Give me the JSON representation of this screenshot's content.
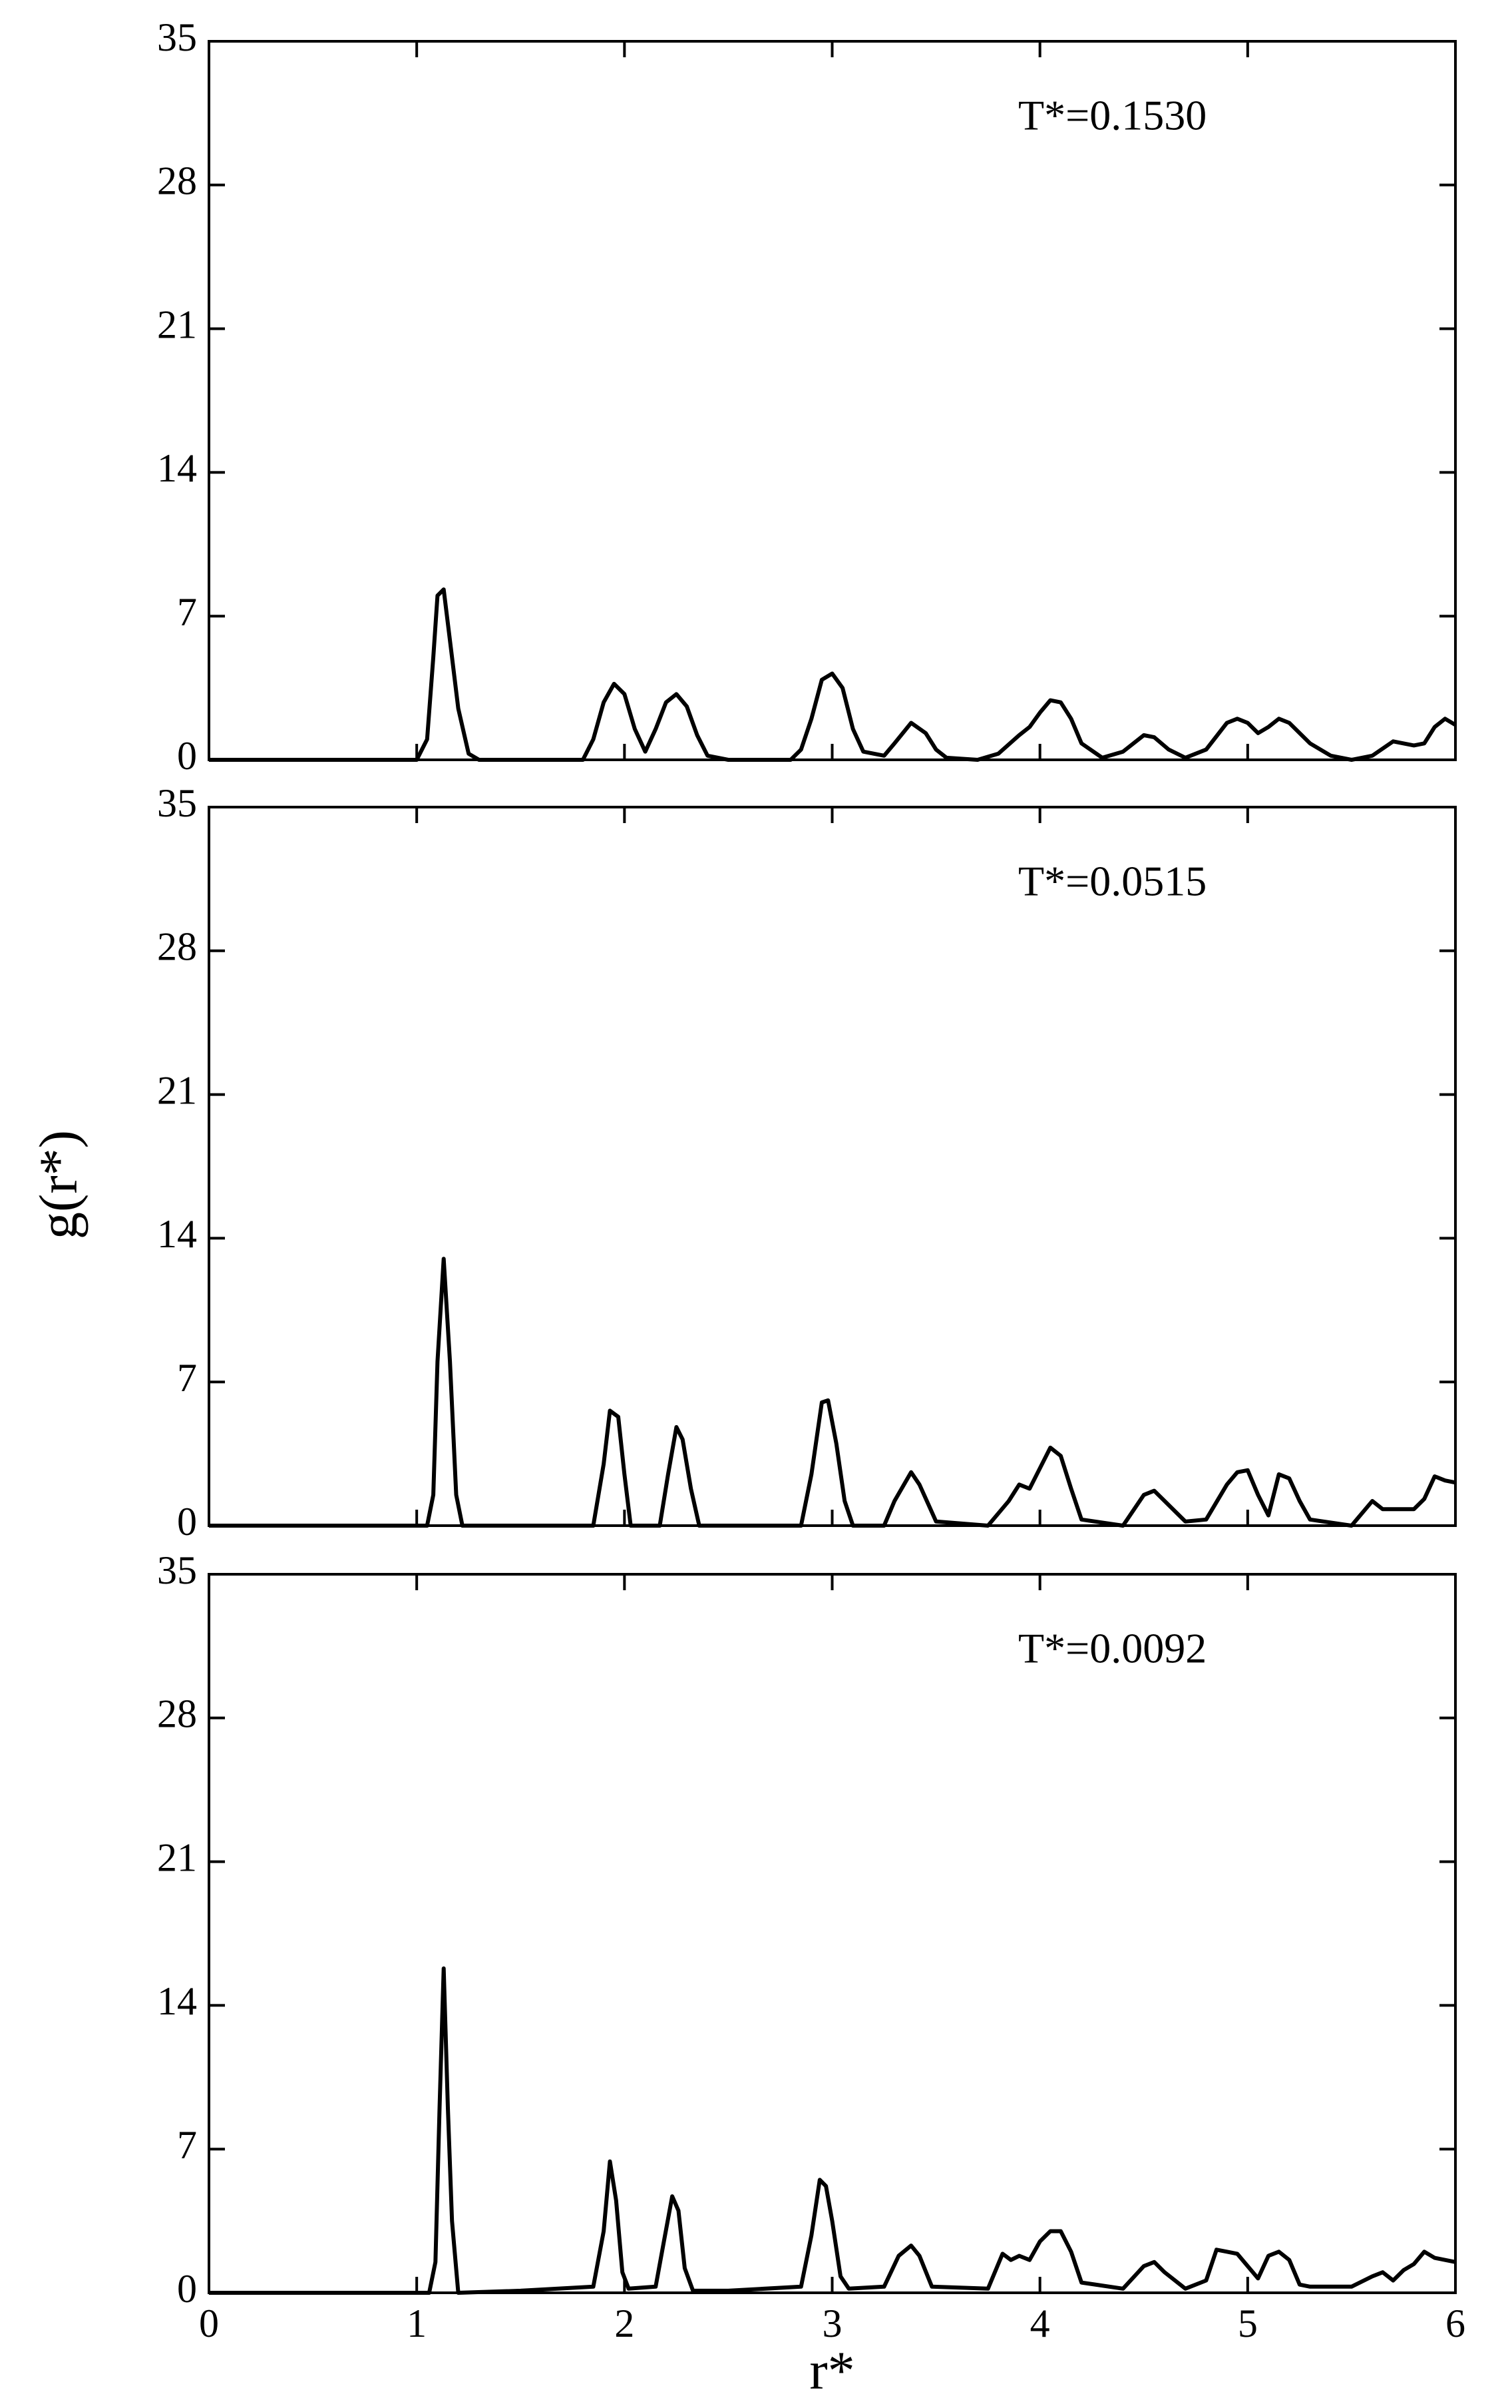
{
  "chart_data": [
    {
      "type": "line",
      "annotation": "T*=0.1530",
      "color": "#000000",
      "xlim": [
        0,
        6
      ],
      "xticks": [
        0,
        1,
        2,
        3,
        4,
        5,
        6
      ],
      "xtick_labels": false,
      "ylim": [
        0,
        35
      ],
      "yticks": [
        0,
        7,
        14,
        21,
        28,
        35
      ],
      "x": [
        0,
        1.0,
        1.05,
        1.08,
        1.1,
        1.13,
        1.17,
        1.2,
        1.25,
        1.3,
        1.8,
        1.85,
        1.9,
        1.95,
        2.0,
        2.05,
        2.1,
        2.15,
        2.2,
        2.25,
        2.3,
        2.35,
        2.4,
        2.5,
        2.8,
        2.85,
        2.9,
        2.95,
        3.0,
        3.05,
        3.1,
        3.15,
        3.25,
        3.3,
        3.38,
        3.45,
        3.5,
        3.55,
        3.7,
        3.8,
        3.9,
        3.95,
        4.0,
        4.05,
        4.1,
        4.15,
        4.2,
        4.3,
        4.4,
        4.5,
        4.55,
        4.62,
        4.7,
        4.8,
        4.9,
        4.95,
        5.0,
        5.05,
        5.1,
        5.15,
        5.2,
        5.3,
        5.4,
        5.5,
        5.6,
        5.7,
        5.8,
        5.85,
        5.9,
        5.95,
        6.0
      ],
      "values": [
        0,
        0,
        1,
        5,
        8.0,
        8.3,
        5,
        2.5,
        0.3,
        0,
        0,
        1,
        2.8,
        3.7,
        3.2,
        1.5,
        0.4,
        1.5,
        2.8,
        3.2,
        2.6,
        1.2,
        0.2,
        0,
        0,
        0.5,
        2,
        3.9,
        4.2,
        3.5,
        1.5,
        0.4,
        0.2,
        0.8,
        1.8,
        1.3,
        0.5,
        0.1,
        0,
        0.3,
        1.2,
        1.6,
        2.3,
        2.9,
        2.8,
        2.0,
        0.8,
        0.1,
        0.4,
        1.2,
        1.1,
        0.5,
        0.1,
        0.5,
        1.8,
        2.0,
        1.8,
        1.3,
        1.6,
        2.0,
        1.8,
        0.8,
        0.2,
        0,
        0.2,
        0.9,
        0.7,
        0.8,
        1.6,
        2.0,
        1.7
      ]
    },
    {
      "type": "line",
      "annotation": "T*=0.0515",
      "ylabel": "g(r*)",
      "color": "#000000",
      "xlim": [
        0,
        6
      ],
      "xticks": [
        0,
        1,
        2,
        3,
        4,
        5,
        6
      ],
      "xtick_labels": false,
      "ylim": [
        0,
        35
      ],
      "yticks": [
        0,
        7,
        14,
        21,
        28,
        35
      ],
      "x": [
        0,
        1.05,
        1.08,
        1.1,
        1.13,
        1.16,
        1.19,
        1.22,
        1.85,
        1.9,
        1.93,
        1.97,
        2.0,
        2.03,
        2.17,
        2.21,
        2.25,
        2.28,
        2.32,
        2.36,
        2.85,
        2.9,
        2.95,
        2.98,
        3.02,
        3.06,
        3.1,
        3.25,
        3.3,
        3.38,
        3.42,
        3.5,
        3.75,
        3.85,
        3.9,
        3.95,
        4.0,
        4.05,
        4.1,
        4.15,
        4.2,
        4.4,
        4.5,
        4.55,
        4.6,
        4.7,
        4.8,
        4.9,
        4.95,
        5.0,
        5.05,
        5.1,
        5.15,
        5.2,
        5.25,
        5.3,
        5.5,
        5.6,
        5.65,
        5.8,
        5.85,
        5.9,
        5.95,
        6.0
      ],
      "values": [
        0,
        0,
        1.5,
        8,
        13.0,
        8,
        1.5,
        0,
        0,
        3,
        5.6,
        5.3,
        2.5,
        0,
        0,
        2.5,
        4.8,
        4.2,
        1.8,
        0,
        0,
        2.5,
        6.0,
        6.1,
        4,
        1.2,
        0,
        0,
        1.2,
        2.6,
        2.0,
        0.2,
        0,
        1.2,
        2.0,
        1.8,
        2.8,
        3.8,
        3.4,
        1.8,
        0.3,
        0,
        1.5,
        1.7,
        1.2,
        0.2,
        0.3,
        2.0,
        2.6,
        2.7,
        1.5,
        0.5,
        2.5,
        2.3,
        1.2,
        0.3,
        0,
        1.2,
        0.8,
        0.8,
        1.3,
        2.4,
        2.2,
        2.1
      ]
    },
    {
      "type": "line",
      "annotation": "T*=0.0092",
      "xlabel": "r*",
      "color": "#000000",
      "xlim": [
        0,
        6
      ],
      "xticks": [
        0,
        1,
        2,
        3,
        4,
        5,
        6
      ],
      "xtick_labels": true,
      "ylim": [
        0,
        35
      ],
      "yticks": [
        0,
        7,
        14,
        21,
        28,
        35
      ],
      "x": [
        0,
        1.06,
        1.09,
        1.11,
        1.13,
        1.15,
        1.17,
        1.2,
        1.5,
        1.85,
        1.9,
        1.93,
        1.96,
        1.99,
        2.02,
        2.15,
        2.19,
        2.23,
        2.26,
        2.29,
        2.33,
        2.5,
        2.85,
        2.9,
        2.94,
        2.97,
        3.0,
        3.04,
        3.08,
        3.25,
        3.32,
        3.38,
        3.42,
        3.48,
        3.75,
        3.82,
        3.86,
        3.9,
        3.95,
        4.0,
        4.05,
        4.1,
        4.15,
        4.2,
        4.4,
        4.5,
        4.55,
        4.6,
        4.7,
        4.8,
        4.85,
        4.9,
        4.95,
        5.0,
        5.05,
        5.1,
        5.15,
        5.2,
        5.25,
        5.3,
        5.5,
        5.6,
        5.65,
        5.7,
        5.75,
        5.8,
        5.85,
        5.9,
        5.95,
        6.0
      ],
      "values": [
        0,
        0,
        1.5,
        9,
        15.8,
        9,
        3.5,
        0,
        0.1,
        0.3,
        3,
        6.4,
        4.5,
        1,
        0.2,
        0.3,
        2.5,
        4.7,
        4.0,
        1.2,
        0.1,
        0.1,
        0.3,
        2.8,
        5.5,
        5.2,
        3.5,
        0.8,
        0.2,
        0.3,
        1.8,
        2.3,
        1.8,
        0.3,
        0.2,
        1.9,
        1.6,
        1.8,
        1.6,
        2.5,
        3.0,
        3.0,
        2.0,
        0.5,
        0.2,
        1.3,
        1.5,
        1.0,
        0.2,
        0.6,
        2.1,
        2.0,
        1.9,
        1.3,
        0.7,
        1.8,
        2.0,
        1.6,
        0.4,
        0.3,
        0.3,
        0.8,
        1.0,
        0.6,
        1.1,
        1.4,
        2.0,
        1.7,
        1.6,
        1.5
      ]
    }
  ]
}
